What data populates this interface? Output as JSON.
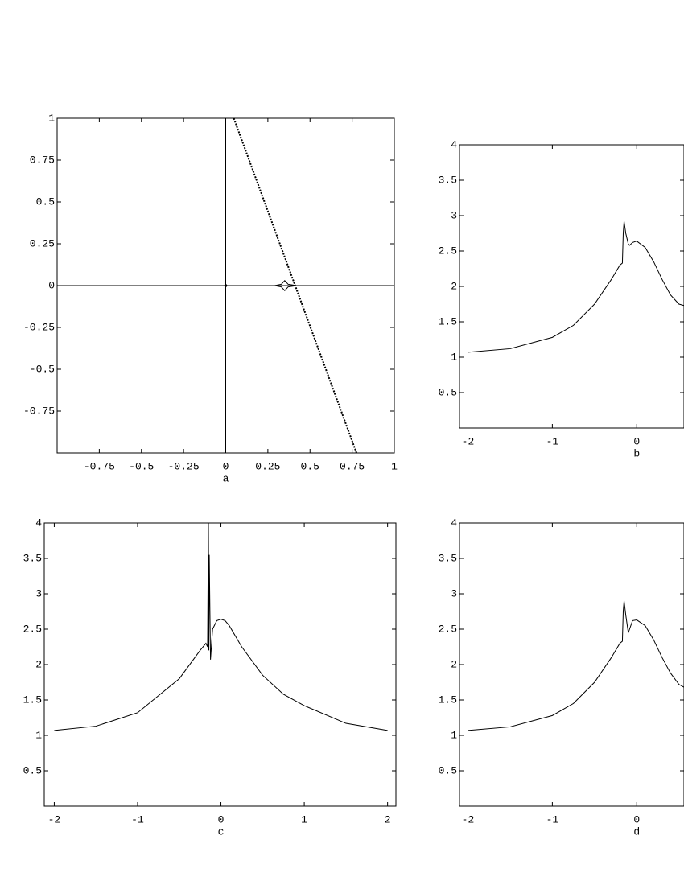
{
  "chart_data": [
    {
      "type": "line",
      "xlabel": "a",
      "xlim": [
        -1,
        1
      ],
      "ylim": [
        -1,
        1
      ],
      "xticks": [
        -0.75,
        -0.5,
        -0.25,
        0,
        0.25,
        0.5,
        0.75,
        1
      ],
      "yticks": [
        -0.75,
        -0.5,
        -0.25,
        0,
        0.25,
        0.5,
        0.75,
        1
      ],
      "zero_axes": true,
      "series": [
        {
          "color": "#000000",
          "dotted": true,
          "x": [
            0.048,
            0.412,
            0.776
          ],
          "values": [
            1,
            0,
            -1
          ]
        },
        {
          "color": "#000000",
          "dotted": false,
          "x": [
            0.29,
            0.33,
            0.35,
            0.37,
            0.42,
            0.37,
            0.35,
            0.33,
            0.29
          ],
          "values": [
            0,
            0.008,
            0.03,
            0.008,
            0,
            -0.008,
            -0.03,
            -0.008,
            0
          ]
        },
        {
          "color": "#000000",
          "dotted": false,
          "x": [
            0
          ],
          "values": [
            0
          ]
        }
      ]
    },
    {
      "type": "line",
      "xlabel": "b",
      "xlim": [
        -2.1,
        0.56
      ],
      "ylim": [
        0,
        4
      ],
      "xticks": [
        -2,
        -1,
        0
      ],
      "yticks": [
        0.5,
        1,
        1.5,
        2,
        2.5,
        3,
        3.5,
        4
      ],
      "zero_axes": false,
      "series": [
        {
          "color": "#000000",
          "dotted": false,
          "x": [
            -2,
            -1.5,
            -1,
            -0.75,
            -0.5,
            -0.3,
            -0.2,
            -0.17,
            -0.16,
            -0.15,
            -0.13,
            -0.1,
            -0.085,
            -0.05,
            0,
            0.1,
            0.2,
            0.3,
            0.4,
            0.5,
            0.56
          ],
          "values": [
            1.07,
            1.12,
            1.28,
            1.45,
            1.75,
            2.1,
            2.3,
            2.33,
            2.75,
            2.92,
            2.75,
            2.6,
            2.58,
            2.62,
            2.64,
            2.55,
            2.35,
            2.1,
            1.88,
            1.75,
            1.73
          ]
        }
      ]
    },
    {
      "type": "line",
      "xlabel": "c",
      "xlim": [
        -2.12,
        2.1
      ],
      "ylim": [
        0,
        4
      ],
      "xticks": [
        -2,
        -1,
        0,
        1,
        2
      ],
      "yticks": [
        0.5,
        1,
        1.5,
        2,
        2.5,
        3,
        3.5,
        4
      ],
      "zero_axes": false,
      "series": [
        {
          "color": "#000000",
          "dotted": false,
          "x": [
            -2,
            -1.5,
            -1,
            -0.5,
            -0.25,
            -0.18,
            -0.16,
            -0.15,
            -0.145,
            -0.14,
            -0.125,
            -0.1,
            -0.05,
            0,
            0.05,
            0.1,
            0.25,
            0.5,
            0.75,
            1,
            1.5,
            2
          ],
          "values": [
            1.07,
            1.13,
            1.32,
            1.8,
            2.2,
            2.3,
            2.25,
            4,
            2.2,
            3.55,
            2.07,
            2.5,
            2.62,
            2.64,
            2.62,
            2.55,
            2.25,
            1.85,
            1.58,
            1.42,
            1.17,
            1.07
          ]
        }
      ]
    },
    {
      "type": "line",
      "xlabel": "d",
      "xlim": [
        -2.1,
        0.56
      ],
      "ylim": [
        0,
        4
      ],
      "xticks": [
        -2,
        -1,
        0
      ],
      "yticks": [
        0.5,
        1,
        1.5,
        2,
        2.5,
        3,
        3.5,
        4
      ],
      "zero_axes": false,
      "series": [
        {
          "color": "#000000",
          "dotted": false,
          "x": [
            -2,
            -1.5,
            -1,
            -0.75,
            -0.5,
            -0.3,
            -0.2,
            -0.17,
            -0.16,
            -0.15,
            -0.13,
            -0.1,
            -0.085,
            -0.05,
            0,
            0.1,
            0.2,
            0.3,
            0.4,
            0.5,
            0.56
          ],
          "values": [
            1.07,
            1.12,
            1.28,
            1.45,
            1.75,
            2.1,
            2.3,
            2.33,
            2.75,
            2.9,
            2.7,
            2.45,
            2.5,
            2.62,
            2.63,
            2.55,
            2.35,
            2.1,
            1.88,
            1.72,
            1.68
          ]
        }
      ]
    }
  ]
}
